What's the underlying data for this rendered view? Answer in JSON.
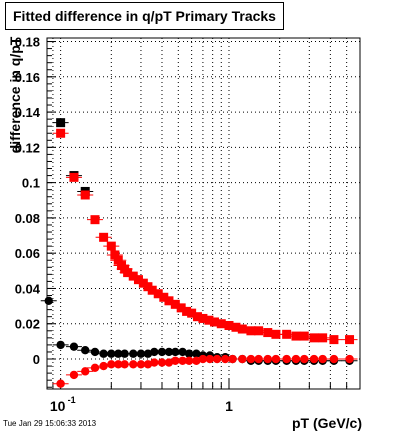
{
  "title": "Fitted difference in q/pT  Primary Tracks",
  "timestamp": "Tue Jan 29 15:06:33 2013",
  "chart_data": {
    "type": "scatter",
    "title": "Fitted difference in q/pT  Primary Tracks",
    "xlabel": "pT (GeV/c)",
    "ylabel": "difference in q/pT",
    "x_scale": "log",
    "xlim": [
      0.083,
      6.0
    ],
    "ylim": [
      -0.017,
      0.182
    ],
    "grid": true,
    "x_ticks": [
      {
        "value": 0.1,
        "label": "10",
        "exp": "-1"
      },
      {
        "value": 1,
        "label": "1",
        "exp": ""
      }
    ],
    "y_ticks": [
      {
        "value": 0,
        "label": "0"
      },
      {
        "value": 0.02,
        "label": "0.02"
      },
      {
        "value": 0.04,
        "label": "0.04"
      },
      {
        "value": 0.06,
        "label": "0.06"
      },
      {
        "value": 0.08,
        "label": "0.08"
      },
      {
        "value": 0.1,
        "label": "0.1"
      },
      {
        "value": 0.12,
        "label": "0.12"
      },
      {
        "value": 0.14,
        "label": "0.14"
      },
      {
        "value": 0.16,
        "label": "0.16"
      },
      {
        "value": 0.18,
        "label": "0.18"
      }
    ],
    "series": [
      {
        "marker": "square",
        "color": "#000000",
        "x": [
          0.1,
          0.12,
          0.14
        ],
        "y": [
          0.134,
          0.104,
          0.095
        ]
      },
      {
        "marker": "square",
        "color": "#ff0000",
        "x": [
          0.1,
          0.12,
          0.14,
          0.16,
          0.18,
          0.2,
          0.21,
          0.22,
          0.23,
          0.24,
          0.25,
          0.27,
          0.29,
          0.31,
          0.33,
          0.35,
          0.38,
          0.41,
          0.44,
          0.48,
          0.52,
          0.56,
          0.6,
          0.65,
          0.7,
          0.76,
          0.82,
          0.9,
          1.0,
          1.1,
          1.2,
          1.35,
          1.5,
          1.7,
          1.9,
          2.2,
          2.5,
          2.8,
          3.2,
          3.6,
          4.2,
          5.2
        ],
        "y": [
          0.128,
          0.103,
          0.093,
          0.079,
          0.069,
          0.064,
          0.059,
          0.056,
          0.053,
          0.051,
          0.049,
          0.047,
          0.045,
          0.043,
          0.041,
          0.039,
          0.037,
          0.035,
          0.033,
          0.031,
          0.029,
          0.027,
          0.026,
          0.024,
          0.023,
          0.022,
          0.021,
          0.02,
          0.019,
          0.018,
          0.017,
          0.016,
          0.016,
          0.015,
          0.014,
          0.014,
          0.013,
          0.013,
          0.012,
          0.012,
          0.011,
          0.011
        ]
      },
      {
        "marker": "circle",
        "color": "#000000",
        "x": [
          0.085,
          0.1,
          0.12,
          0.14,
          0.16,
          0.18,
          0.2,
          0.22,
          0.24,
          0.27,
          0.3,
          0.33,
          0.36,
          0.4,
          0.44,
          0.48,
          0.53,
          0.58,
          0.64,
          0.7,
          0.77,
          0.85,
          0.95,
          1.05,
          1.2,
          1.35,
          1.5,
          1.7,
          1.9,
          2.2,
          2.5,
          2.8,
          3.2,
          3.6,
          4.2,
          5.2
        ],
        "y": [
          0.033,
          0.008,
          0.007,
          0.005,
          0.004,
          0.003,
          0.003,
          0.003,
          0.003,
          0.003,
          0.003,
          0.003,
          0.004,
          0.004,
          0.004,
          0.004,
          0.004,
          0.003,
          0.003,
          0.002,
          0.002,
          0.001,
          0.001,
          0.0,
          0.0,
          -0.001,
          -0.001,
          -0.001,
          -0.001,
          -0.001,
          -0.001,
          -0.001,
          -0.001,
          -0.001,
          -0.001,
          -0.001
        ]
      },
      {
        "marker": "circle",
        "color": "#ff0000",
        "x": [
          0.1,
          0.12,
          0.14,
          0.16,
          0.18,
          0.2,
          0.22,
          0.24,
          0.27,
          0.3,
          0.33,
          0.36,
          0.4,
          0.44,
          0.48,
          0.53,
          0.58,
          0.64,
          0.7,
          0.77,
          0.85,
          0.95,
          1.05,
          1.2,
          1.35,
          1.5,
          1.7,
          1.9,
          2.2,
          2.5,
          2.8,
          3.2,
          3.6,
          4.2,
          5.2
        ],
        "y": [
          -0.014,
          -0.009,
          -0.007,
          -0.005,
          -0.004,
          -0.003,
          -0.003,
          -0.003,
          -0.003,
          -0.003,
          -0.003,
          -0.002,
          -0.002,
          -0.002,
          -0.001,
          -0.001,
          -0.001,
          -0.001,
          0.0,
          0.0,
          0.0,
          0.0,
          0.0,
          0.0,
          0.0,
          0.0,
          0.0,
          0.0,
          0.0,
          0.0,
          0.0,
          0.0,
          0.0,
          0.0,
          0.0
        ]
      }
    ]
  }
}
